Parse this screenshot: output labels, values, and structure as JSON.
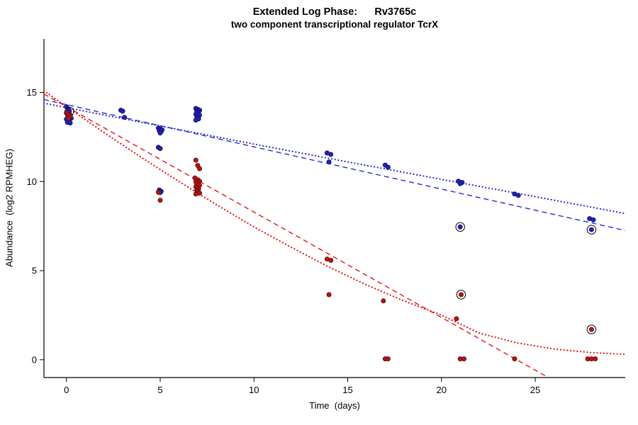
{
  "chart_data": {
    "type": "scatter",
    "title": "Extended Log Phase:      Rv3765c",
    "subtitle": "two component transcriptional regulator TcrX",
    "xlabel": "Time  (days)",
    "ylabel": "Abundance  (log2 RPMHEG)",
    "xlim": [
      -1.2,
      29.8
    ],
    "ylim": [
      -1,
      18
    ],
    "xticks": [
      0,
      5,
      10,
      15,
      20,
      25
    ],
    "yticks": [
      0,
      5,
      10,
      15
    ],
    "grid": false,
    "legend": "none",
    "axis_color": "#000000",
    "series": [
      {
        "name": "blue-series",
        "point_color": "#2222c0",
        "edge_color": "#10105e",
        "points": [
          [
            0,
            14.2
          ],
          [
            0.1,
            14.05
          ],
          [
            0,
            13.85
          ],
          [
            0.15,
            13.8
          ],
          [
            0.05,
            13.75
          ],
          [
            0.2,
            13.7
          ],
          [
            0.1,
            13.62
          ],
          [
            0.25,
            13.55
          ],
          [
            0,
            13.5
          ],
          [
            0.15,
            13.45
          ],
          [
            0.05,
            13.32
          ],
          [
            0.2,
            13.28
          ],
          [
            2.9,
            14.0
          ],
          [
            3.0,
            13.95
          ],
          [
            3.1,
            13.6
          ],
          [
            4.9,
            13.0
          ],
          [
            5.0,
            12.95
          ],
          [
            5.1,
            12.9
          ],
          [
            4.95,
            12.85
          ],
          [
            5.05,
            12.8
          ],
          [
            5.0,
            12.72
          ],
          [
            4.9,
            11.92
          ],
          [
            5.0,
            11.85
          ],
          [
            4.95,
            9.52
          ],
          [
            5.05,
            9.45
          ],
          [
            5.0,
            9.38
          ],
          [
            6.9,
            14.1
          ],
          [
            7.0,
            14.05
          ],
          [
            7.1,
            14.0
          ],
          [
            6.95,
            13.95
          ],
          [
            7.05,
            13.9
          ],
          [
            7.0,
            13.85
          ],
          [
            6.9,
            13.78
          ],
          [
            7.1,
            13.72
          ],
          [
            6.95,
            13.65
          ],
          [
            7.0,
            13.58
          ],
          [
            7.05,
            13.52
          ],
          [
            6.9,
            13.45
          ],
          [
            13.9,
            11.6
          ],
          [
            14.1,
            11.52
          ],
          [
            14.0,
            11.1
          ],
          [
            17.0,
            10.92
          ],
          [
            17.15,
            10.8
          ],
          [
            20.9,
            10.02
          ],
          [
            21.1,
            9.95
          ],
          [
            21.0,
            9.88
          ],
          [
            23.9,
            9.3
          ],
          [
            24.1,
            9.22
          ],
          [
            27.9,
            7.92
          ],
          [
            28.1,
            7.85
          ]
        ],
        "circled": [
          [
            0.15,
            13.92
          ],
          [
            21.0,
            7.45
          ],
          [
            28.0,
            7.3
          ]
        ]
      },
      {
        "name": "red-series",
        "point_color": "#b81414",
        "edge_color": "#5e0a0a",
        "points": [
          [
            0,
            13.85
          ],
          [
            0.1,
            13.75
          ],
          [
            0.2,
            13.65
          ],
          [
            0.1,
            13.55
          ],
          [
            4.9,
            9.4
          ],
          [
            5.0,
            8.95
          ],
          [
            6.9,
            11.2
          ],
          [
            7.0,
            10.9
          ],
          [
            7.1,
            10.72
          ],
          [
            6.85,
            10.2
          ],
          [
            7.0,
            10.1
          ],
          [
            7.1,
            10.02
          ],
          [
            6.9,
            9.98
          ],
          [
            7.05,
            9.92
          ],
          [
            6.95,
            9.85
          ],
          [
            7.1,
            9.78
          ],
          [
            6.9,
            9.7
          ],
          [
            7.0,
            9.65
          ],
          [
            7.05,
            9.58
          ],
          [
            6.95,
            9.5
          ],
          [
            7.0,
            9.42
          ],
          [
            7.1,
            9.35
          ],
          [
            6.9,
            9.3
          ],
          [
            13.9,
            5.65
          ],
          [
            14.1,
            5.58
          ],
          [
            14.0,
            3.65
          ],
          [
            16.9,
            3.3
          ],
          [
            17.0,
            0.05
          ],
          [
            17.15,
            0.05
          ],
          [
            20.8,
            2.3
          ],
          [
            21.0,
            0.05
          ],
          [
            21.2,
            0.05
          ],
          [
            23.9,
            0.05
          ],
          [
            27.8,
            0.05
          ],
          [
            28.0,
            0.05
          ],
          [
            28.2,
            0.05
          ]
        ],
        "circled": [
          [
            21.05,
            3.65
          ],
          [
            28.0,
            1.7
          ]
        ]
      }
    ],
    "fit_lines": [
      {
        "name": "blue-dashed-fit",
        "color": "#2a2ad2",
        "style": "dashed",
        "x": [
          -1.2,
          29.8
        ],
        "y": [
          14.6,
          7.25
        ]
      },
      {
        "name": "blue-dotted-fit",
        "color": "#2a2ad2",
        "style": "dotted",
        "x": [
          -1.2,
          0,
          5,
          10,
          15,
          20,
          25,
          29.8
        ],
        "y": [
          14.4,
          14.15,
          13.12,
          12.1,
          11.1,
          10.12,
          9.15,
          8.2
        ]
      },
      {
        "name": "red-dashed-fit",
        "color": "#e41414",
        "style": "dashed",
        "x": [
          -1.2,
          25.7
        ],
        "y": [
          14.91,
          -1.0
        ]
      },
      {
        "name": "red-dotted-fit",
        "color": "#e41414",
        "style": "dotted",
        "x": [
          -1.2,
          0,
          2,
          4,
          6,
          8,
          10,
          12,
          14,
          16,
          18,
          20,
          22,
          24,
          26,
          28,
          29.8
        ],
        "y": [
          15.1,
          14.2,
          12.75,
          11.35,
          10.0,
          8.7,
          7.45,
          6.3,
          5.2,
          4.2,
          3.3,
          2.5,
          1.5,
          0.95,
          0.6,
          0.4,
          0.3
        ]
      }
    ]
  }
}
